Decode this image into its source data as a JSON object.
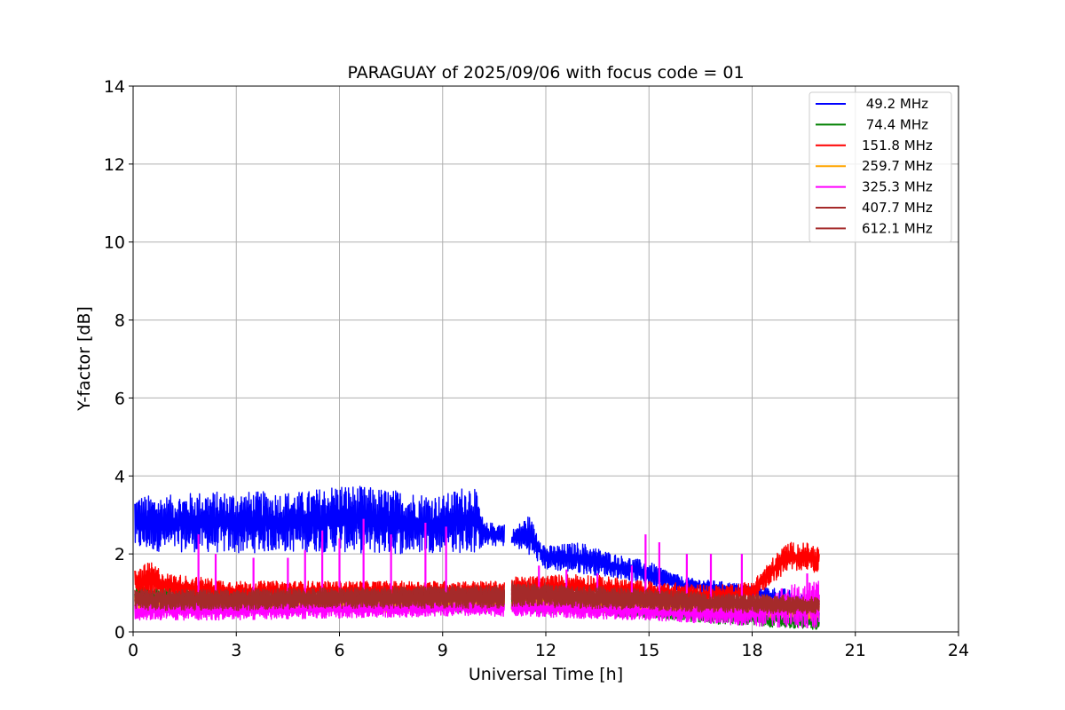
{
  "chart_data": {
    "type": "line",
    "title": "PARAGUAY of 2025/09/06 with focus code = 01",
    "xlabel": "Universal Time [h]",
    "ylabel": "Y-factor [dB]",
    "xlim": [
      0,
      24
    ],
    "ylim": [
      0,
      14
    ],
    "xticks": [
      0,
      3,
      6,
      9,
      12,
      15,
      18,
      21,
      24
    ],
    "yticks": [
      0,
      2,
      4,
      6,
      8,
      10,
      12,
      14
    ],
    "grid": true,
    "legend_position": "top-right",
    "series": [
      {
        "name": " 49.2 MHz",
        "color": "#0000ff",
        "x": [
          0.05,
          1,
          2,
          3,
          4,
          5,
          6,
          7,
          8,
          9,
          9.9,
          10.2,
          10.8,
          11.0,
          11.5,
          12.0,
          13.0,
          14.0,
          15.0,
          16.0,
          17.0,
          18.0,
          19.0,
          19.95
        ],
        "low": [
          2.1,
          2.05,
          2.05,
          2.0,
          2.05,
          2.05,
          2.05,
          2.0,
          2.0,
          2.05,
          2.0,
          2.2,
          2.2,
          2.2,
          2.0,
          1.6,
          1.5,
          1.4,
          1.2,
          1.0,
          0.95,
          0.95,
          0.4,
          0.1
        ],
        "high": [
          3.5,
          3.5,
          3.6,
          3.6,
          3.6,
          3.6,
          3.8,
          3.7,
          3.6,
          3.5,
          3.85,
          2.8,
          2.8,
          2.6,
          3.0,
          2.2,
          2.3,
          2.0,
          1.8,
          1.4,
          1.3,
          1.2,
          1.1,
          0.8
        ]
      },
      {
        "name": " 74.4 MHz",
        "color": "#008000",
        "x": [
          0.05,
          3,
          6,
          9,
          10.8,
          11.0,
          13,
          15,
          17,
          18,
          19,
          19.95
        ],
        "low": [
          0.5,
          0.45,
          0.5,
          0.5,
          0.5,
          0.5,
          0.45,
          0.35,
          0.2,
          0.15,
          0.1,
          0.05
        ],
        "high": [
          1.2,
          1.1,
          1.1,
          1.1,
          1.1,
          1.1,
          1.0,
          0.9,
          0.7,
          0.6,
          0.5,
          0.4
        ]
      },
      {
        "name": "151.8 MHz",
        "color": "#ff0000",
        "x": [
          0.05,
          0.5,
          1,
          3,
          6,
          9,
          10.8,
          11.0,
          13,
          15,
          17,
          18.0,
          18.5,
          19.0,
          19.5,
          19.95
        ],
        "low": [
          0.9,
          0.9,
          0.85,
          0.8,
          0.85,
          0.85,
          0.85,
          0.85,
          0.8,
          0.7,
          0.7,
          0.75,
          1.2,
          1.5,
          1.6,
          1.5
        ],
        "high": [
          1.6,
          1.8,
          1.5,
          1.3,
          1.3,
          1.3,
          1.3,
          1.4,
          1.5,
          1.3,
          1.2,
          1.3,
          1.8,
          2.3,
          2.3,
          2.2
        ]
      },
      {
        "name": "259.7 MHz",
        "color": "#ffa500",
        "x": [
          0.05,
          3,
          6,
          9,
          10.8,
          11.0,
          13,
          15,
          17,
          19,
          19.95
        ],
        "low": [
          0.5,
          0.5,
          0.5,
          0.5,
          0.5,
          0.5,
          0.5,
          0.45,
          0.4,
          0.35,
          0.3
        ],
        "high": [
          0.9,
          0.9,
          0.9,
          0.9,
          0.9,
          0.9,
          0.9,
          0.85,
          0.8,
          0.75,
          0.7
        ]
      },
      {
        "name": "325.3 MHz",
        "color": "#ff00ff",
        "x": [
          0.05,
          3,
          6,
          9,
          10.8,
          11.0,
          13,
          15,
          17,
          18,
          19,
          19.95
        ],
        "low": [
          0.3,
          0.3,
          0.35,
          0.4,
          0.4,
          0.4,
          0.35,
          0.3,
          0.2,
          0.15,
          0.1,
          0.1
        ],
        "high": [
          0.8,
          0.8,
          0.8,
          0.8,
          0.8,
          0.85,
          0.8,
          0.75,
          0.7,
          0.8,
          1.2,
          1.3
        ],
        "spikes": [
          [
            1.9,
            2.5
          ],
          [
            2.4,
            2.0
          ],
          [
            3.5,
            1.9
          ],
          [
            4.5,
            1.9
          ],
          [
            5.0,
            2.1
          ],
          [
            5.5,
            2.6
          ],
          [
            6.0,
            2.4
          ],
          [
            6.7,
            2.9
          ],
          [
            7.5,
            2.5
          ],
          [
            8.5,
            2.8
          ],
          [
            9.1,
            2.7
          ],
          [
            11.8,
            1.7
          ],
          [
            12.6,
            1.6
          ],
          [
            13.5,
            1.5
          ],
          [
            14.5,
            1.7
          ],
          [
            14.9,
            2.5
          ],
          [
            15.3,
            2.3
          ],
          [
            16.1,
            2.0
          ],
          [
            16.8,
            2.0
          ],
          [
            17.7,
            2.0
          ],
          [
            19.6,
            1.5
          ]
        ]
      },
      {
        "name": "407.7 MHz",
        "color": "#a52a2a",
        "x": [
          0.05,
          3,
          6,
          9,
          10.8,
          11.0,
          13,
          15,
          17,
          19,
          19.95
        ],
        "low": [
          0.6,
          0.6,
          0.65,
          0.65,
          0.65,
          0.7,
          0.65,
          0.6,
          0.55,
          0.5,
          0.5
        ],
        "high": [
          1.1,
          1.1,
          1.15,
          1.2,
          1.2,
          1.3,
          1.2,
          1.1,
          1.0,
          0.95,
          0.9
        ]
      },
      {
        "name": "612.1 MHz",
        "color": "#a52a2a",
        "x": [
          0.05,
          3,
          6,
          9,
          10.8,
          11.0,
          13,
          15,
          17,
          19,
          19.95
        ],
        "low": [
          0.55,
          0.55,
          0.6,
          0.6,
          0.6,
          0.65,
          0.6,
          0.55,
          0.5,
          0.45,
          0.45
        ],
        "high": [
          1.05,
          1.05,
          1.1,
          1.15,
          1.15,
          1.25,
          1.15,
          1.05,
          0.95,
          0.9,
          0.9
        ]
      }
    ]
  }
}
